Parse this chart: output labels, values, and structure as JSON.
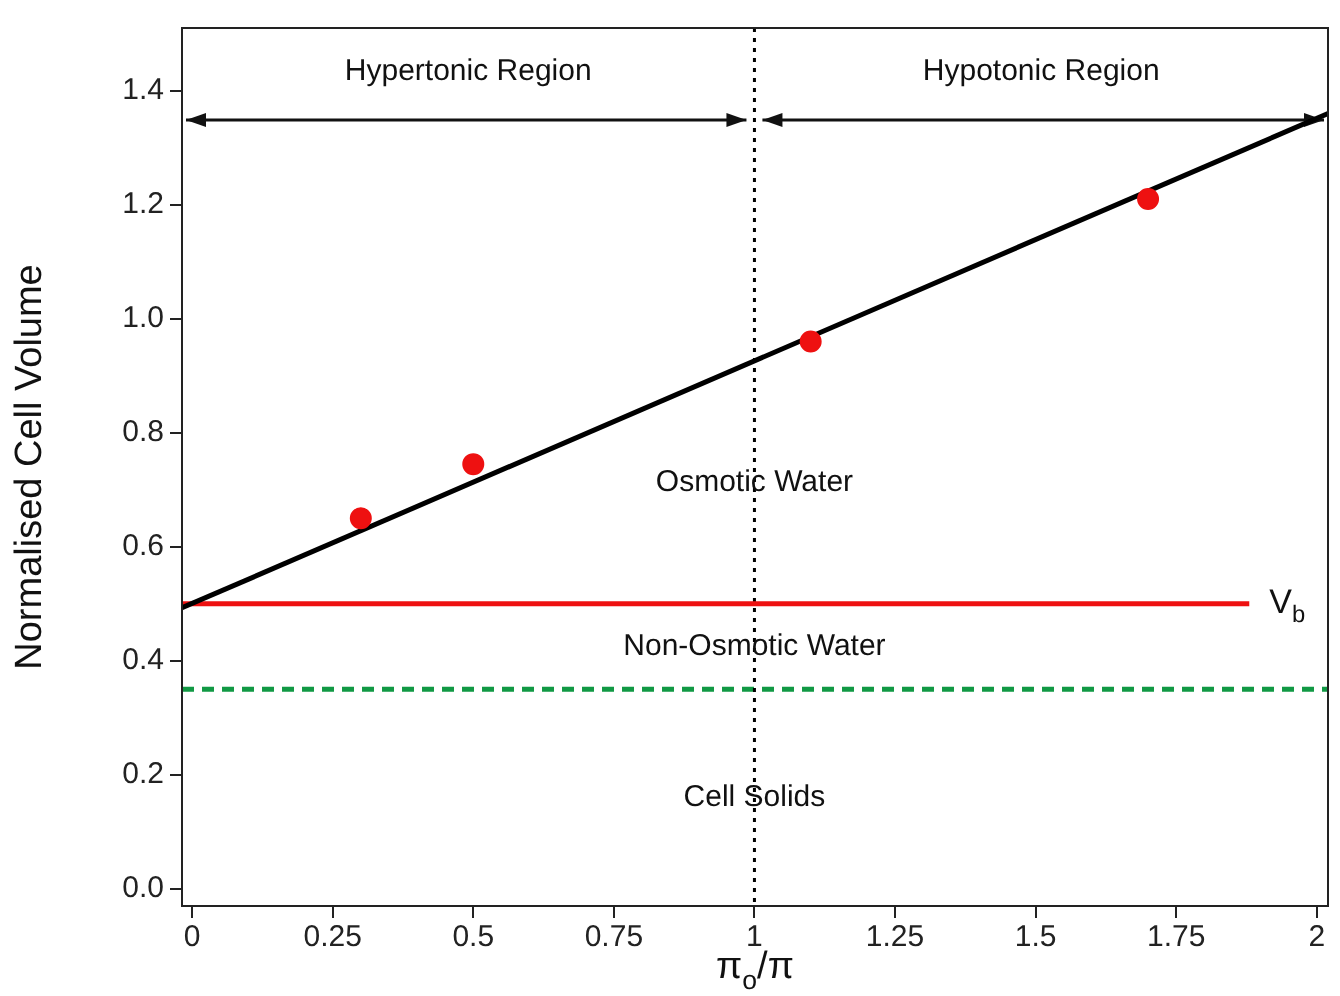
{
  "chart_data": {
    "type": "scatter",
    "xlabel": "π$_{o}$/π",
    "ylabel": "Normalised Cell Volume",
    "xlim": [
      -0.018,
      2.02
    ],
    "ylim": [
      -0.03,
      1.51
    ],
    "xticks": [
      0,
      0.25,
      0.5,
      0.75,
      1,
      1.25,
      1.5,
      1.75,
      2
    ],
    "yticks": [
      {
        "value": 0,
        "label": "0.0"
      },
      0.2,
      0.4,
      0.6,
      0.8,
      {
        "value": 1,
        "label": "1.0"
      },
      1.2,
      1.4
    ],
    "grid": false,
    "legend": false,
    "series": [
      {
        "color": "#ee1111",
        "marker": "circle",
        "x": [
          0.3,
          0.5,
          1.1,
          1.7
        ],
        "values": [
          0.65,
          0.745,
          0.96,
          1.21
        ]
      },
      {
        "type": "line",
        "color": "#000000",
        "marker": "none",
        "x": [
          -0.018,
          2.02
        ],
        "values": [
          0.493,
          1.36
        ]
      },
      {
        "type": "line",
        "name": "V$_{b}$",
        "color": "#ee1111",
        "marker": "none",
        "x": [
          -0.018,
          1.88
        ],
        "values": [
          0.5,
          0.5
        ]
      }
    ],
    "ref_lines": [
      {
        "axis": "y",
        "value": 0.35,
        "color": "#119944",
        "line_style": "dashed"
      },
      {
        "axis": "x",
        "value": 1,
        "color": "#000000",
        "line_style": "dotted"
      }
    ],
    "annotations": [
      "Hypertonic Region",
      "Hypotonic Region",
      "Osmotic Water",
      "Non-Osmotic Water",
      "Cell Solids"
    ]
  }
}
